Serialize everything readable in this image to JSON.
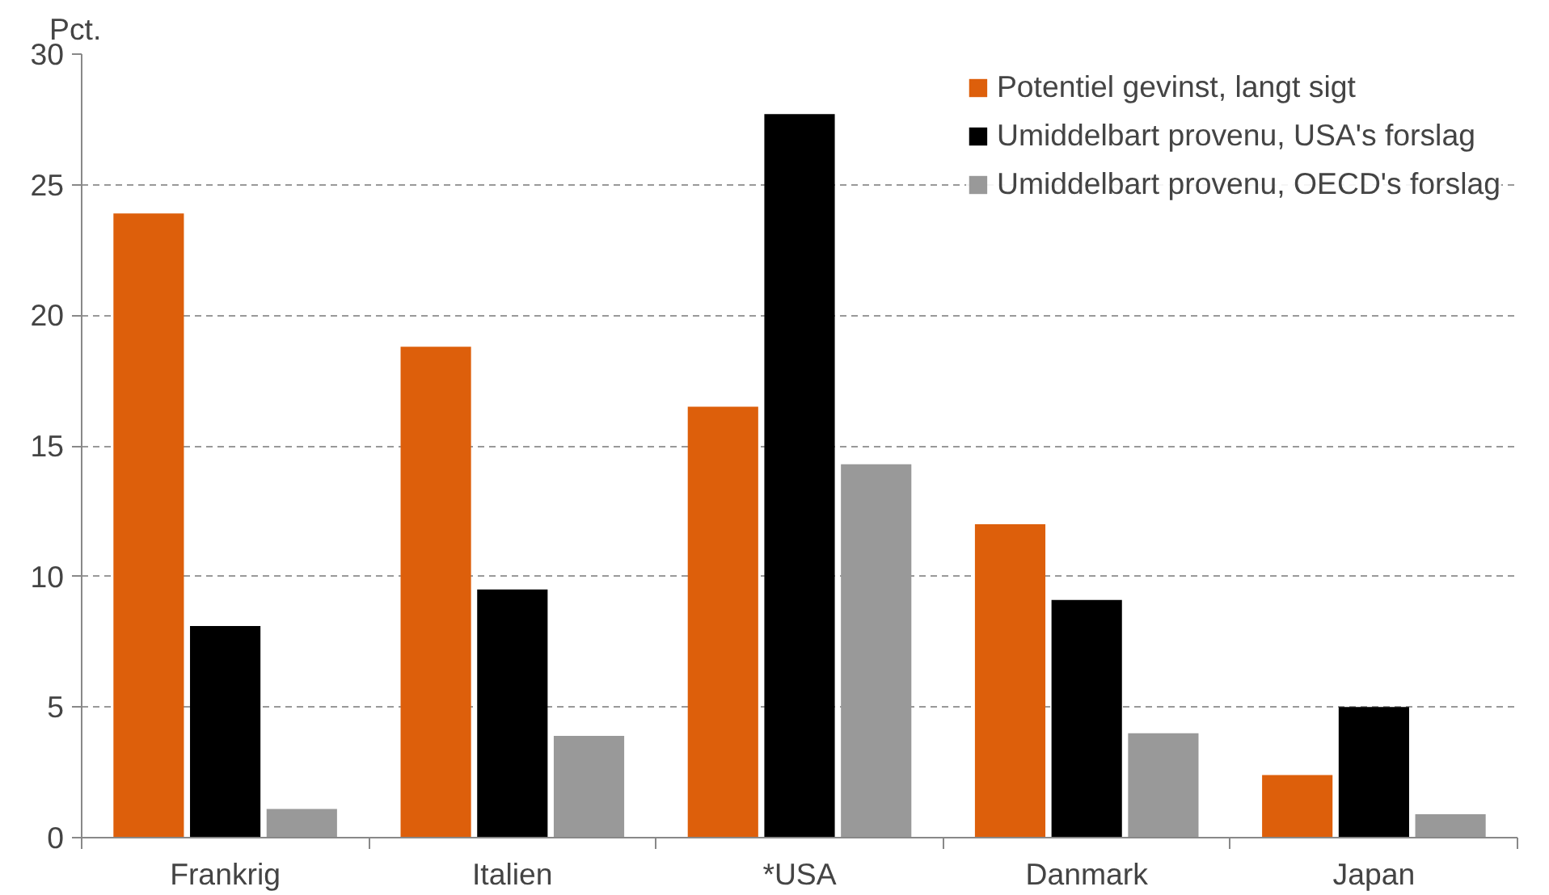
{
  "chart_data": {
    "type": "bar",
    "ylabel": "Pct.",
    "categories": [
      "Frankrig",
      "Italien",
      "*USA",
      "Danmark",
      "Japan"
    ],
    "series": [
      {
        "name": "Potentiel gevinst, langt sigt",
        "color": "#dd5f0b",
        "values": [
          23.9,
          18.8,
          16.5,
          12.0,
          2.4
        ]
      },
      {
        "name": "Umiddelbart provenu, USA's forslag",
        "color": "#000000",
        "values": [
          8.1,
          9.5,
          27.7,
          9.1,
          5.0
        ]
      },
      {
        "name": "Umiddelbart provenu, OECD's forslag",
        "color": "#999999",
        "values": [
          1.1,
          3.9,
          14.3,
          4.0,
          0.9
        ]
      }
    ],
    "ylim": [
      0,
      30
    ],
    "yticks": [
      0,
      5,
      10,
      15,
      20,
      25,
      30
    ],
    "grid": "y",
    "legend": "top right"
  }
}
